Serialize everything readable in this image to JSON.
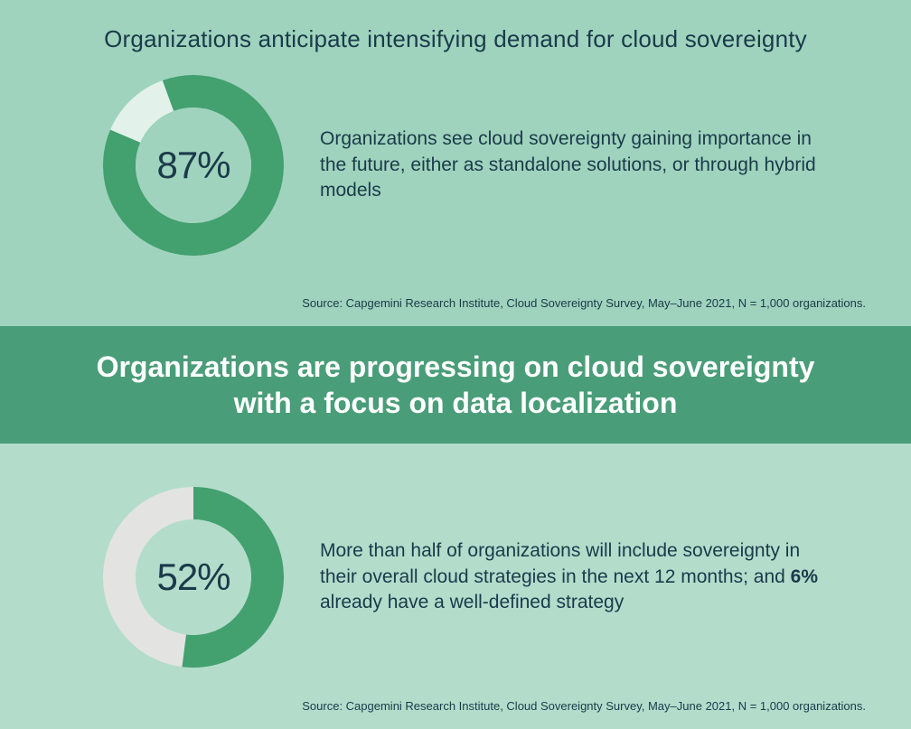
{
  "colors": {
    "panel_top_bg": "#9fd3bd",
    "panel_bottom_bg": "#b3dccb",
    "banner_bg": "#4a9d79",
    "text_dark": "#1a3a4a",
    "text_white": "#ffffff",
    "donut_fill": "#43a06f",
    "donut_track_top": "#e2f2ea",
    "donut_track_bottom": "#e3e4e2"
  },
  "typography": {
    "heading_fontsize": 26,
    "banner_fontsize": 32,
    "desc_fontsize": 21,
    "pct_fontsize": 42,
    "source_fontsize": 13
  },
  "top": {
    "heading": "Organizations anticipate intensifying demand for cloud sovereignty",
    "donut": {
      "percent": 87,
      "label": "87%",
      "size": 200,
      "thickness": 36,
      "start_angle_deg": -20,
      "fill_color": "#43a06f",
      "track_color": "#e2f2ea"
    },
    "desc": "Organizations see cloud sovereignty gaining importance in the future, either as standalone solutions, or through hybrid models",
    "source": "Source: Capgemini Research Institute, Cloud Sovereignty Survey, May–June 2021, N = 1,000 organizations."
  },
  "banner": {
    "text": "Organizations are progressing on cloud sovereignty with a focus on data localization"
  },
  "bottom": {
    "donut": {
      "percent": 52,
      "label": "52%",
      "size": 200,
      "thickness": 36,
      "start_angle_deg": 0,
      "fill_color": "#43a06f",
      "track_color": "#e3e4e2"
    },
    "desc_pre": "More than half of organizations will include sovereignty in their overall cloud strategies in the next 12 months; and ",
    "desc_bold": "6%",
    "desc_post": " already have a well-defined strategy",
    "source": "Source: Capgemini Research Institute, Cloud Sovereignty Survey, May–June 2021, N = 1,000 organizations."
  }
}
